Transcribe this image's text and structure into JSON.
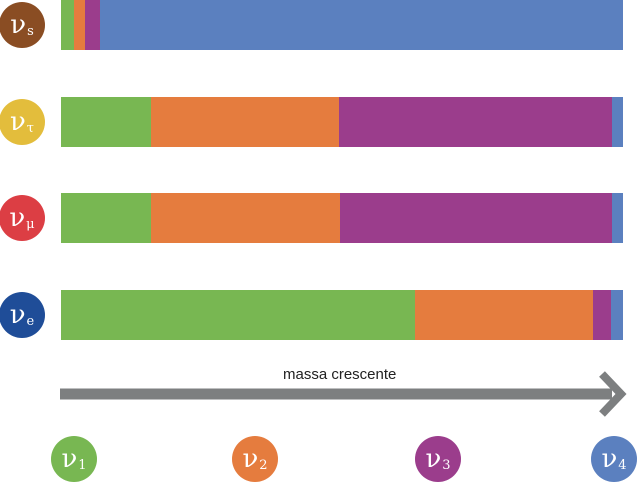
{
  "colors": {
    "nu1": "#78b752",
    "nu2": "#e57c3e",
    "nu3": "#9b3d8c",
    "nu4": "#5b80bf",
    "sterile": "#8a4d23",
    "tau": "#e3bd3c",
    "mu": "#dc3e44",
    "electron": "#1f4d98",
    "arrow": "#7d7f80"
  },
  "flavors": [
    {
      "symbol": "ν",
      "sub": "s",
      "color": "#8a4d23"
    },
    {
      "symbol": "ν",
      "sub": "τ",
      "color": "#e3bd3c"
    },
    {
      "symbol": "ν",
      "sub": "μ",
      "color": "#dc3e44"
    },
    {
      "symbol": "ν",
      "sub": "e",
      "color": "#1f4d98"
    }
  ],
  "mass_states": [
    {
      "symbol": "ν",
      "sub": "1",
      "color": "#78b752"
    },
    {
      "symbol": "ν",
      "sub": "2",
      "color": "#e57c3e"
    },
    {
      "symbol": "ν",
      "sub": "3",
      "color": "#9b3d8c"
    },
    {
      "symbol": "ν",
      "sub": "4",
      "color": "#5b80bf"
    }
  ],
  "arrow": {
    "label": "massa crescente"
  },
  "chart_data": {
    "type": "bar",
    "orientation": "horizontal",
    "stacked": true,
    "categories": [
      "νs",
      "ντ",
      "νμ",
      "νe"
    ],
    "series": [
      {
        "name": "ν1",
        "values": [
          0.023,
          0.16,
          0.16,
          0.63
        ]
      },
      {
        "name": "ν2",
        "values": [
          0.02,
          0.335,
          0.337,
          0.316
        ]
      },
      {
        "name": "ν3",
        "values": [
          0.027,
          0.485,
          0.483,
          0.032
        ]
      },
      {
        "name": "ν4",
        "values": [
          0.93,
          0.02,
          0.02,
          0.022
        ]
      }
    ],
    "xlim": [
      0,
      1
    ],
    "grid": false,
    "legend": "bottom"
  }
}
